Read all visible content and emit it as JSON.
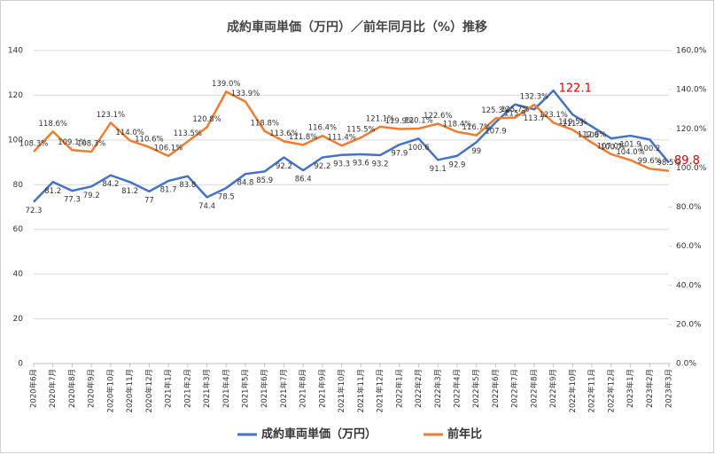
{
  "chart_data": {
    "type": "line",
    "title": "成約車両単価（万円）／前年同月比（%）推移",
    "categories": [
      "2020年6月",
      "2020年7月",
      "2020年8月",
      "2020年9月",
      "2020年10月",
      "2020年11月",
      "2020年12月",
      "2021年1月",
      "2021年2月",
      "2021年3月",
      "2021年4月",
      "2021年5月",
      "2021年6月",
      "2021年7月",
      "2021年8月",
      "2021年9月",
      "2021年10月",
      "2021年11月",
      "2021年12月",
      "2022年1月",
      "2022年2月",
      "2022年3月",
      "2022年4月",
      "2022年5月",
      "2022年6月",
      "2022年7月",
      "2022年8月",
      "2022年9月",
      "2022年10月",
      "2022年11月",
      "2022年12月",
      "2023年1月",
      "2023年2月",
      "2023年3月"
    ],
    "series": [
      {
        "name": "成約車両単価（万円）",
        "color": "#4472c4",
        "values": [
          72.3,
          81.2,
          77.3,
          79.2,
          84.2,
          81.2,
          77,
          81.7,
          83.8,
          74.4,
          78.5,
          84.8,
          85.9,
          92.2,
          86.4,
          92.2,
          93.3,
          93.6,
          93.2,
          97.9,
          100.6,
          91.1,
          92.9,
          99,
          107.9,
          115.9,
          113.7,
          122.1,
          111.3,
          106,
          100.7,
          101.9,
          100.2,
          89.8
        ]
      },
      {
        "name": "前年比",
        "color": "#ed7d31",
        "axis": "y2",
        "values": [
          108.3,
          118.6,
          109.1,
          108.3,
          123.1,
          114.0,
          110.6,
          106.1,
          113.5,
          120.8,
          139.0,
          133.9,
          118.8,
          113.6,
          111.8,
          116.4,
          111.4,
          115.5,
          121.1,
          119.9,
          120.1,
          122.6,
          118.4,
          116.7,
          125.3,
          125.7,
          132.3,
          123.1,
          119.5,
          112.9,
          107.0,
          104.0,
          99.6,
          98.5
        ],
        "value_labels": [
          "108.3%",
          "118.6%",
          "109.1%",
          "108.3%",
          "123.1%",
          "114.0%",
          "110.6%",
          "106.1%",
          "113.5%",
          "120.8%",
          "139.0%",
          "133.9%",
          "118.8%",
          "113.6%",
          "111.8%",
          "116.4%",
          "111.4%",
          "115.5%",
          "121.1%",
          "119.9%",
          "120.1%",
          "122.6%",
          "118.4%",
          "116.7%",
          "125.3%",
          "125.7%",
          "132.3%",
          "123.1%",
          "119.5%",
          "112.9%",
          "107.0%",
          "104.0%",
          "99.6%",
          "98.5%"
        ]
      }
    ],
    "ylim": [
      0,
      140
    ],
    "yticks": [
      0,
      20,
      40,
      60,
      80,
      100,
      120,
      140
    ],
    "y2lim": [
      0,
      160
    ],
    "y2ticks": [
      {
        "value": 0,
        "label": "0.0%"
      },
      {
        "value": 20,
        "label": "20.0%"
      },
      {
        "value": 40,
        "label": "40.0%"
      },
      {
        "value": 60,
        "label": "60.0%"
      },
      {
        "value": 80,
        "label": "80.0%"
      },
      {
        "value": 100,
        "label": "100.0%"
      },
      {
        "value": 120,
        "label": "120.0%"
      },
      {
        "value": 140,
        "label": "140.0%"
      },
      {
        "value": 160,
        "label": "160.0%"
      }
    ],
    "grid": true,
    "legend": "bottom"
  }
}
